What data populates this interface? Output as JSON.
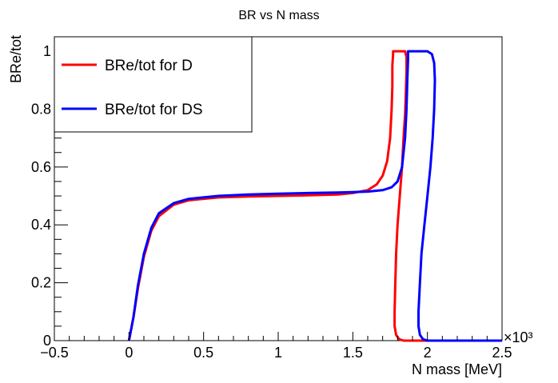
{
  "chart_data": {
    "type": "line",
    "title": "BR vs N mass",
    "xlabel": "N mass [MeV]",
    "ylabel": "BRe/tot",
    "x_exponent_label": "×10³",
    "xlim": [
      -0.5,
      2.5
    ],
    "ylim": [
      0,
      1.05
    ],
    "x_ticks": [
      -0.5,
      0,
      0.5,
      1,
      1.5,
      2,
      2.5
    ],
    "x_tick_labels": [
      "−0.5",
      "0",
      "0.5",
      "1",
      "1.5",
      "2",
      "2.5"
    ],
    "y_ticks": [
      0,
      0.2,
      0.4,
      0.6,
      0.8,
      1
    ],
    "y_tick_labels": [
      "0",
      "0.2",
      "0.4",
      "0.6",
      "0.8",
      "1"
    ],
    "grid": false,
    "legend_position": "top-left",
    "series": [
      {
        "name": "BRe/tot for D",
        "color": "#ff0000",
        "points": [
          [
            0,
            0
          ],
          [
            0.03,
            0.08
          ],
          [
            0.06,
            0.18
          ],
          [
            0.1,
            0.29
          ],
          [
            0.15,
            0.38
          ],
          [
            0.2,
            0.43
          ],
          [
            0.3,
            0.47
          ],
          [
            0.4,
            0.485
          ],
          [
            0.6,
            0.495
          ],
          [
            0.8,
            0.498
          ],
          [
            1.0,
            0.5
          ],
          [
            1.2,
            0.502
          ],
          [
            1.4,
            0.505
          ],
          [
            1.5,
            0.51
          ],
          [
            1.6,
            0.52
          ],
          [
            1.66,
            0.54
          ],
          [
            1.7,
            0.57
          ],
          [
            1.73,
            0.62
          ],
          [
            1.75,
            0.7
          ],
          [
            1.76,
            0.8
          ],
          [
            1.765,
            0.88
          ],
          [
            1.765,
            0.95
          ],
          [
            1.77,
            0.99
          ],
          [
            1.77,
            1.0
          ],
          [
            1.85,
            1.0
          ],
          [
            1.86,
            0.98
          ],
          [
            1.86,
            0.93
          ],
          [
            1.855,
            0.85
          ],
          [
            1.85,
            0.78
          ],
          [
            1.84,
            0.7
          ],
          [
            1.83,
            0.6
          ],
          [
            1.815,
            0.5
          ],
          [
            1.8,
            0.4
          ],
          [
            1.79,
            0.3
          ],
          [
            1.785,
            0.2
          ],
          [
            1.78,
            0.1
          ],
          [
            1.78,
            0.05
          ],
          [
            1.79,
            0.02
          ],
          [
            1.81,
            0.005
          ],
          [
            1.84,
            0.0
          ],
          [
            2.5,
            0.0
          ]
        ]
      },
      {
        "name": "BRe/tot for DS",
        "color": "#0000ff",
        "points": [
          [
            0,
            0
          ],
          [
            0.03,
            0.08
          ],
          [
            0.06,
            0.19
          ],
          [
            0.1,
            0.3
          ],
          [
            0.15,
            0.39
          ],
          [
            0.2,
            0.44
          ],
          [
            0.3,
            0.475
          ],
          [
            0.4,
            0.49
          ],
          [
            0.6,
            0.5
          ],
          [
            0.8,
            0.505
          ],
          [
            1.0,
            0.508
          ],
          [
            1.2,
            0.51
          ],
          [
            1.4,
            0.512
          ],
          [
            1.5,
            0.513
          ],
          [
            1.6,
            0.515
          ],
          [
            1.7,
            0.52
          ],
          [
            1.76,
            0.53
          ],
          [
            1.8,
            0.55
          ],
          [
            1.83,
            0.6
          ],
          [
            1.85,
            0.7
          ],
          [
            1.86,
            0.8
          ],
          [
            1.865,
            0.9
          ],
          [
            1.87,
            0.97
          ],
          [
            1.87,
            1.0
          ],
          [
            2.0,
            1.0
          ],
          [
            2.03,
            0.99
          ],
          [
            2.045,
            0.96
          ],
          [
            2.05,
            0.9
          ],
          [
            2.045,
            0.8
          ],
          [
            2.035,
            0.7
          ],
          [
            2.02,
            0.6
          ],
          [
            2.0,
            0.5
          ],
          [
            1.98,
            0.4
          ],
          [
            1.96,
            0.3
          ],
          [
            1.95,
            0.2
          ],
          [
            1.94,
            0.1
          ],
          [
            1.94,
            0.05
          ],
          [
            1.95,
            0.02
          ],
          [
            1.97,
            0.005
          ],
          [
            2.0,
            0.0
          ],
          [
            2.5,
            0.0
          ]
        ]
      }
    ]
  }
}
